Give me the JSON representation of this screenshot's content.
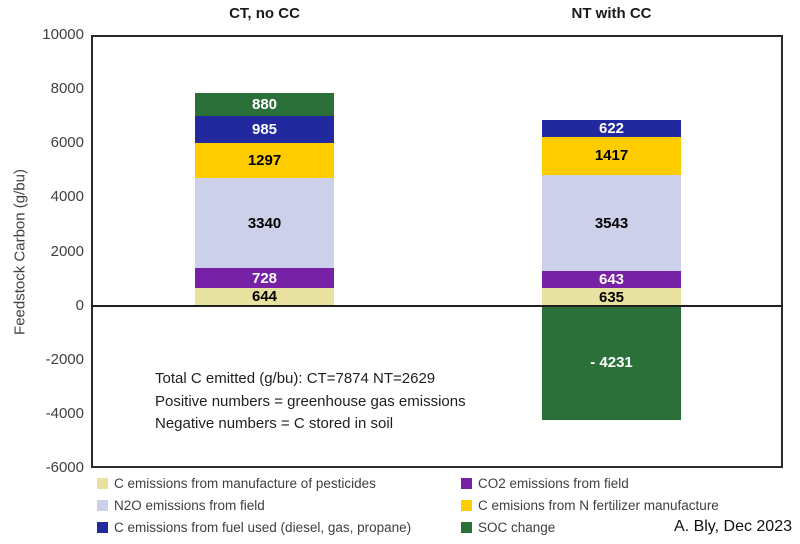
{
  "chart_data": {
    "type": "bar",
    "stacked": true,
    "categories": [
      "CT, no CC",
      "NT with CC"
    ],
    "ylabel": "Feedstock Carbon (g/bu)",
    "ylim": [
      -6000,
      10000
    ],
    "yticks": [
      10000,
      8000,
      6000,
      4000,
      2000,
      0,
      -2000,
      -4000,
      -6000
    ],
    "grid": false,
    "legend_position": "bottom-two-columns",
    "series": [
      {
        "name": "C emissions from manufacture of pesticides",
        "color": "#E8E2A0",
        "label_color": "#000000",
        "values": [
          644,
          635
        ]
      },
      {
        "name": "CO2 emissions from field",
        "color": "#7621A6",
        "label_color": "#ffffff",
        "values": [
          728,
          643
        ]
      },
      {
        "name": "N2O emissions from field",
        "color": "#CCD0E8",
        "label_color": "#000000",
        "values": [
          3340,
          3543
        ]
      },
      {
        "name": "C emisions from N fertilizer manufacture",
        "color": "#FFCC00",
        "label_color": "#000000",
        "values": [
          1297,
          1417
        ]
      },
      {
        "name": "C emissions from fuel used (diesel, gas, propane)",
        "color": "#22289E",
        "label_color": "#ffffff",
        "values": [
          985,
          622
        ]
      },
      {
        "name": "SOC change",
        "color": "#2B7038",
        "label_color": "#ffffff",
        "values": [
          880,
          -4231
        ]
      }
    ],
    "legend_columns": [
      [
        0,
        2,
        4
      ],
      [
        1,
        3,
        5
      ]
    ],
    "annotation": [
      "Total C emitted (g/bu): CT=7874 NT=2629",
      "Positive numbers = greenhouse gas emissions",
      "Negative numbers = C stored in soil"
    ],
    "totals_note": {
      "CT": 7874,
      "NT": 2629
    }
  },
  "attribution": "A. Bly, Dec 2023"
}
